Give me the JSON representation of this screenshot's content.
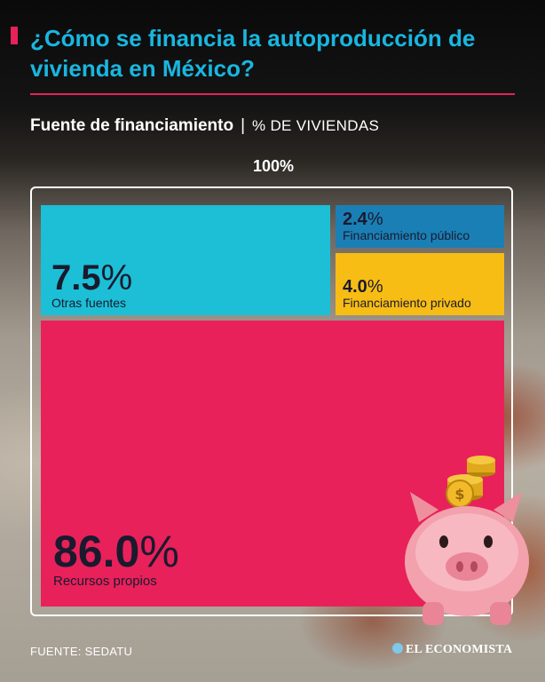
{
  "title": "¿Cómo se financia la autoproducción de vivienda en México?",
  "subtitle": {
    "main": "Fuente de financiamiento",
    "separator": "|",
    "unit": "% DE VIVIENDAS"
  },
  "total_label": "100%",
  "chart_data": {
    "type": "treemap",
    "title": "¿Cómo se financia la autoproducción de vivienda en México?",
    "subtitle": "Fuente de financiamiento | % DE VIVIENDAS",
    "total": "100%",
    "unit": "%",
    "items": [
      {
        "label": "Recursos propios",
        "value": 86.0,
        "display": "86.0",
        "color": "#e8215a"
      },
      {
        "label": "Otras fuentes",
        "value": 7.5,
        "display": "7.5",
        "color": "#1cbfd6"
      },
      {
        "label": "Financiamiento privado",
        "value": 4.0,
        "display": "4.0",
        "color": "#f7bd14"
      },
      {
        "label": "Financiamiento público",
        "value": 2.4,
        "display": "2.4",
        "color": "#1a7fb5"
      }
    ]
  },
  "footer": {
    "source": "FUENTE: SEDATU",
    "brand": "EL ECONOMISTA"
  },
  "illustration": {
    "icon": "piggy-bank-with-coins-icon"
  },
  "colors": {
    "title": "#19b6e0",
    "accent": "#e8215a",
    "background": "#0a0a0a"
  }
}
